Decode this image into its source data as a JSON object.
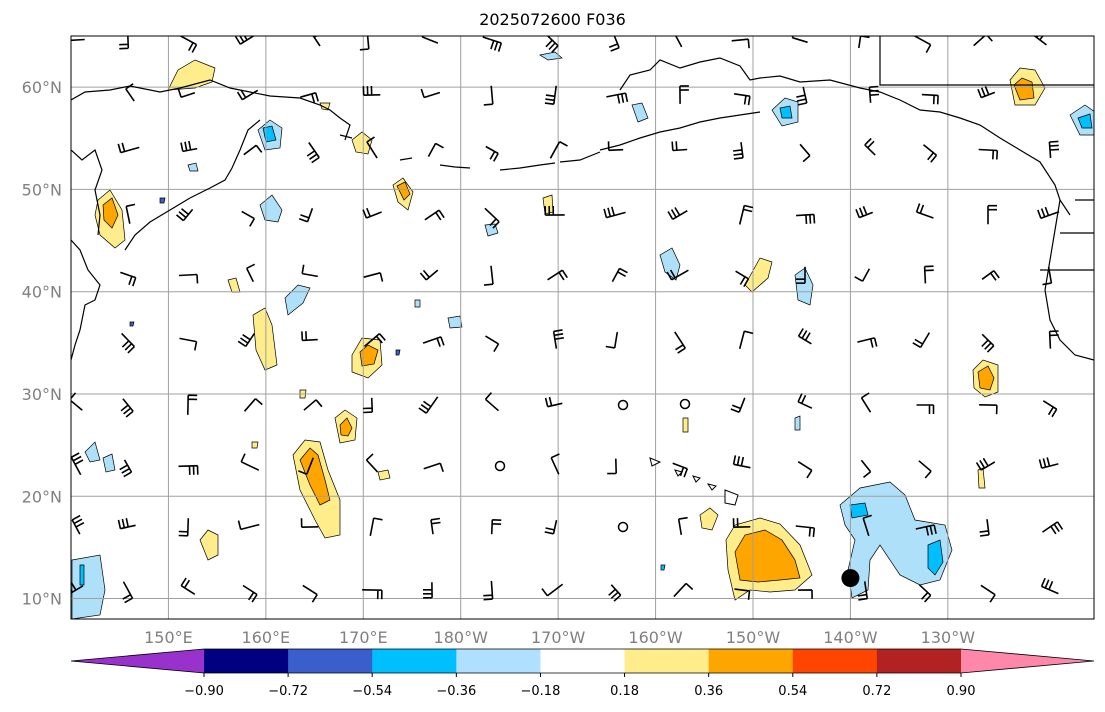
{
  "title": "2025072600 F036",
  "map": {
    "lon_range": [
      140,
      245
    ],
    "lat_range": [
      8,
      65
    ],
    "lat_ticks": [
      {
        "value": 10,
        "label": "10°N"
      },
      {
        "value": 20,
        "label": "20°N"
      },
      {
        "value": 30,
        "label": "30°N"
      },
      {
        "value": 40,
        "label": "40°N"
      },
      {
        "value": 50,
        "label": "50°N"
      },
      {
        "value": 60,
        "label": "60°N"
      }
    ],
    "lon_ticks": [
      {
        "value": 150,
        "label": "150°E"
      },
      {
        "value": 160,
        "label": "160°E"
      },
      {
        "value": 170,
        "label": "170°E"
      },
      {
        "value": 180,
        "label": "180°W"
      },
      {
        "value": 190,
        "label": "170°W"
      },
      {
        "value": 200,
        "label": "160°W"
      },
      {
        "value": 210,
        "label": "150°W"
      },
      {
        "value": 220,
        "label": "140°W"
      },
      {
        "value": 230,
        "label": "130°W"
      }
    ],
    "grid": true,
    "colors": {
      "neg_light": "#aee0fa",
      "neg_mid": "#00bfff",
      "pos_light": "#ffec8b",
      "pos_mid": "#ffa500",
      "coast": "#000000"
    }
  },
  "colorbar": {
    "colors": [
      "#9932cc",
      "#000080",
      "#3a5fcd",
      "#00bfff",
      "#b0e0ff",
      "#ffffff",
      "#ffec8b",
      "#ffa500",
      "#ff4500",
      "#b22222",
      "#ff88aa"
    ],
    "tick_labels": [
      "−0.90",
      "−0.72",
      "−0.54",
      "−0.36",
      "−0.18",
      "0.18",
      "0.36",
      "0.54",
      "0.72",
      "0.90"
    ]
  },
  "storm_marker": {
    "lon": 220,
    "lat": 12
  }
}
